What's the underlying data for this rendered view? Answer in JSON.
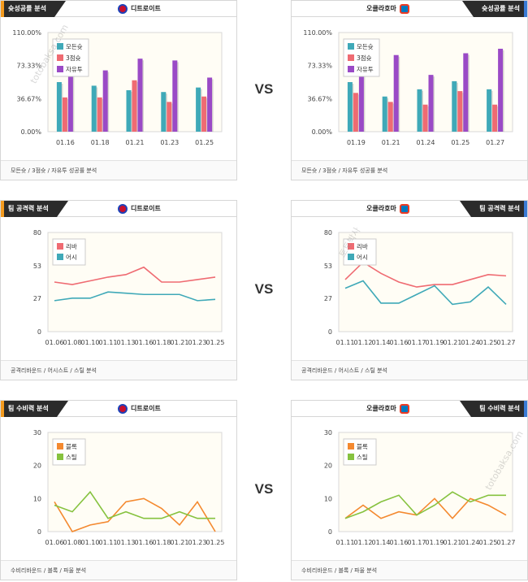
{
  "vs_label": "VS",
  "watermark": "totobaksa.com",
  "watermark_kr": "토토박사",
  "colors": {
    "teal": "#3fa9b8",
    "red": "#ef6b72",
    "purple": "#9a4ac6",
    "orange": "#f4892f",
    "green": "#86c23f",
    "plot_bg": "#fffdf5",
    "det_logo": "#c8102e",
    "okc_logo": "#007ac1"
  },
  "sections": [
    {
      "left": {
        "tag": "슛성공률 분석",
        "team": "디트로이트",
        "logo": "det-logo",
        "footer": "모든슛 / 3점슛 / 자유투 성공률 분석"
      },
      "right": {
        "tag": "슛성공률 분석",
        "team": "오클라호마",
        "logo": "okc-logo",
        "footer": "모든슛 / 3점슛 / 자유투 성공률 분석"
      }
    },
    {
      "left": {
        "tag": "팀 공격력 분석",
        "team": "디트로이트",
        "logo": "det-logo",
        "footer": "공격리바운드 / 어시스트 / 스틸 분석"
      },
      "right": {
        "tag": "팀 공격력 분석",
        "team": "오클라호마",
        "logo": "okc-logo",
        "footer": "공격리바운드 / 어시스트 / 스틸 분석"
      }
    },
    {
      "left": {
        "tag": "팀 수비력 분석",
        "team": "디트로이트",
        "logo": "det-logo",
        "footer": "수비리바운드 / 블록 / 파울 분석"
      },
      "right": {
        "tag": "팀 수비력 분석",
        "team": "오클라호마",
        "logo": "okc-logo",
        "footer": "수비리바운드 / 블록 / 파울 분석"
      }
    }
  ],
  "chart_data": [
    {
      "type": "bar",
      "team": "디트로이트",
      "categories": [
        "01.16",
        "01.18",
        "01.21",
        "01.23",
        "01.25"
      ],
      "yticks": [
        "0.00%",
        "36.67%",
        "73.33%",
        "110.00%"
      ],
      "ylim": [
        0,
        110
      ],
      "series": [
        {
          "name": "모든슛",
          "color": "#3fa9b8",
          "values": [
            55,
            51,
            46,
            44,
            49
          ]
        },
        {
          "name": "3점슛",
          "color": "#ef6b72",
          "values": [
            38,
            38,
            57,
            33,
            39
          ]
        },
        {
          "name": "자유투",
          "color": "#9a4ac6",
          "values": [
            84,
            68,
            81,
            79,
            60
          ]
        }
      ],
      "legend": "top-left",
      "grid": false
    },
    {
      "type": "bar",
      "team": "오클라호마",
      "categories": [
        "01.19",
        "01.21",
        "01.24",
        "01.25",
        "01.27"
      ],
      "yticks": [
        "0.00%",
        "36.67%",
        "73.33%",
        "110.00%"
      ],
      "ylim": [
        0,
        110
      ],
      "series": [
        {
          "name": "모든슛",
          "color": "#3fa9b8",
          "values": [
            55,
            39,
            47,
            56,
            47
          ]
        },
        {
          "name": "3점슛",
          "color": "#ef6b72",
          "values": [
            43,
            33,
            30,
            45,
            30
          ]
        },
        {
          "name": "자유투",
          "color": "#9a4ac6",
          "values": [
            80,
            85,
            63,
            87,
            92
          ]
        }
      ],
      "legend": "top-left",
      "grid": false
    },
    {
      "type": "line",
      "team": "디트로이트",
      "x": [
        "01.06",
        "01.08",
        "01.10",
        "01.11",
        "01.13",
        "01.16",
        "01.18",
        "01.21",
        "01.23",
        "01.25"
      ],
      "yticks": [
        0,
        27,
        53,
        80
      ],
      "ylim": [
        0,
        80
      ],
      "series": [
        {
          "name": "리바",
          "color": "#ef6b72",
          "values": [
            40,
            38,
            41,
            44,
            46,
            52,
            40,
            40,
            42,
            44
          ]
        },
        {
          "name": "어시",
          "color": "#3fa9b8",
          "values": [
            25,
            27,
            27,
            32,
            31,
            30,
            30,
            30,
            25,
            26
          ]
        }
      ],
      "legend": "top-left",
      "grid": false
    },
    {
      "type": "line",
      "team": "오클라호마",
      "x": [
        "01.11",
        "01.12",
        "01.14",
        "01.16",
        "01.17",
        "01.19",
        "01.21",
        "01.24",
        "01.25",
        "01.27"
      ],
      "yticks": [
        0,
        27,
        53,
        80
      ],
      "ylim": [
        0,
        80
      ],
      "series": [
        {
          "name": "리바",
          "color": "#ef6b72",
          "values": [
            42,
            56,
            47,
            40,
            36,
            38,
            38,
            42,
            46,
            45
          ]
        },
        {
          "name": "어시",
          "color": "#3fa9b8",
          "values": [
            35,
            41,
            23,
            23,
            30,
            37,
            22,
            24,
            36,
            22
          ]
        }
      ],
      "legend": "top-left",
      "grid": false
    },
    {
      "type": "line",
      "team": "디트로이트",
      "x": [
        "01.06",
        "01.08",
        "01.10",
        "01.11",
        "01.13",
        "01.16",
        "01.18",
        "01.21",
        "01.23",
        "01.25"
      ],
      "yticks": [
        0,
        10,
        20,
        30
      ],
      "ylim": [
        0,
        30
      ],
      "series": [
        {
          "name": "블록",
          "color": "#f4892f",
          "values": [
            9,
            0,
            2,
            3,
            9,
            10,
            7,
            2,
            9,
            0
          ]
        },
        {
          "name": "스틸",
          "color": "#86c23f",
          "values": [
            8,
            6,
            12,
            4,
            6,
            4,
            4,
            6,
            4,
            4
          ]
        }
      ],
      "legend": "top-left",
      "grid": false
    },
    {
      "type": "line",
      "team": "오클라호마",
      "x": [
        "01.11",
        "01.12",
        "01.14",
        "01.16",
        "01.17",
        "01.19",
        "01.21",
        "01.24",
        "01.25",
        "01.27"
      ],
      "yticks": [
        0,
        10,
        20,
        30
      ],
      "ylim": [
        0,
        30
      ],
      "series": [
        {
          "name": "블록",
          "color": "#f4892f",
          "values": [
            4,
            8,
            4,
            6,
            5,
            10,
            4,
            10,
            8,
            5
          ]
        },
        {
          "name": "스틸",
          "color": "#86c23f",
          "values": [
            4,
            6,
            9,
            11,
            5,
            8,
            12,
            9,
            11,
            11
          ]
        }
      ],
      "legend": "top-left",
      "grid": false
    }
  ]
}
